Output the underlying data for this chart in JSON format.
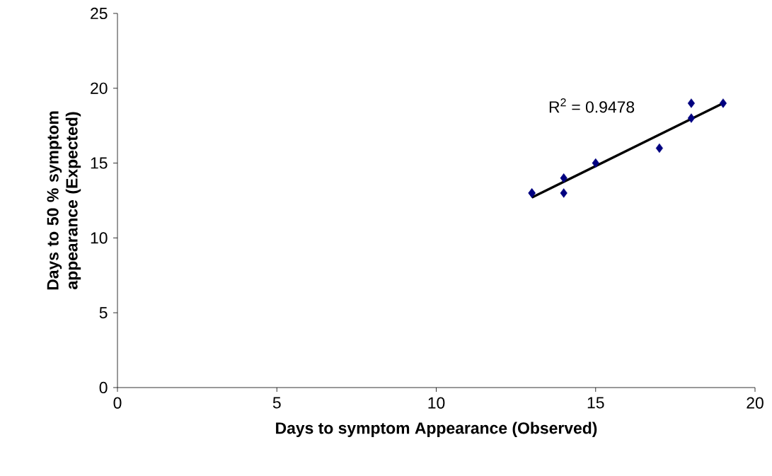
{
  "chart_data": {
    "type": "scatter",
    "xlabel": "Days to symptom Appearance (Observed)",
    "ylabel": "Days to 50 % symptom appearance (Expected)",
    "annotations": [
      "R$^{2}$ = 0.9478"
    ],
    "series": [
      {
        "color": "#000080",
        "marker": "diamond",
        "x": [
          13,
          13,
          14,
          14,
          15,
          17,
          18,
          18,
          19
        ],
        "values": [
          13,
          13,
          14,
          13,
          15,
          16,
          19,
          18,
          19
        ]
      },
      {
        "type": "line",
        "color": "#000000",
        "marker": "none",
        "line_style": "solid",
        "x": [
          13,
          19
        ],
        "values": [
          12.7,
          19
        ]
      }
    ],
    "xlim": [
      0,
      20
    ],
    "ylim": [
      0,
      25
    ],
    "xticks": [
      0,
      5,
      10,
      15,
      20
    ],
    "yticks": [
      0,
      5,
      10,
      15,
      20,
      25
    ]
  }
}
